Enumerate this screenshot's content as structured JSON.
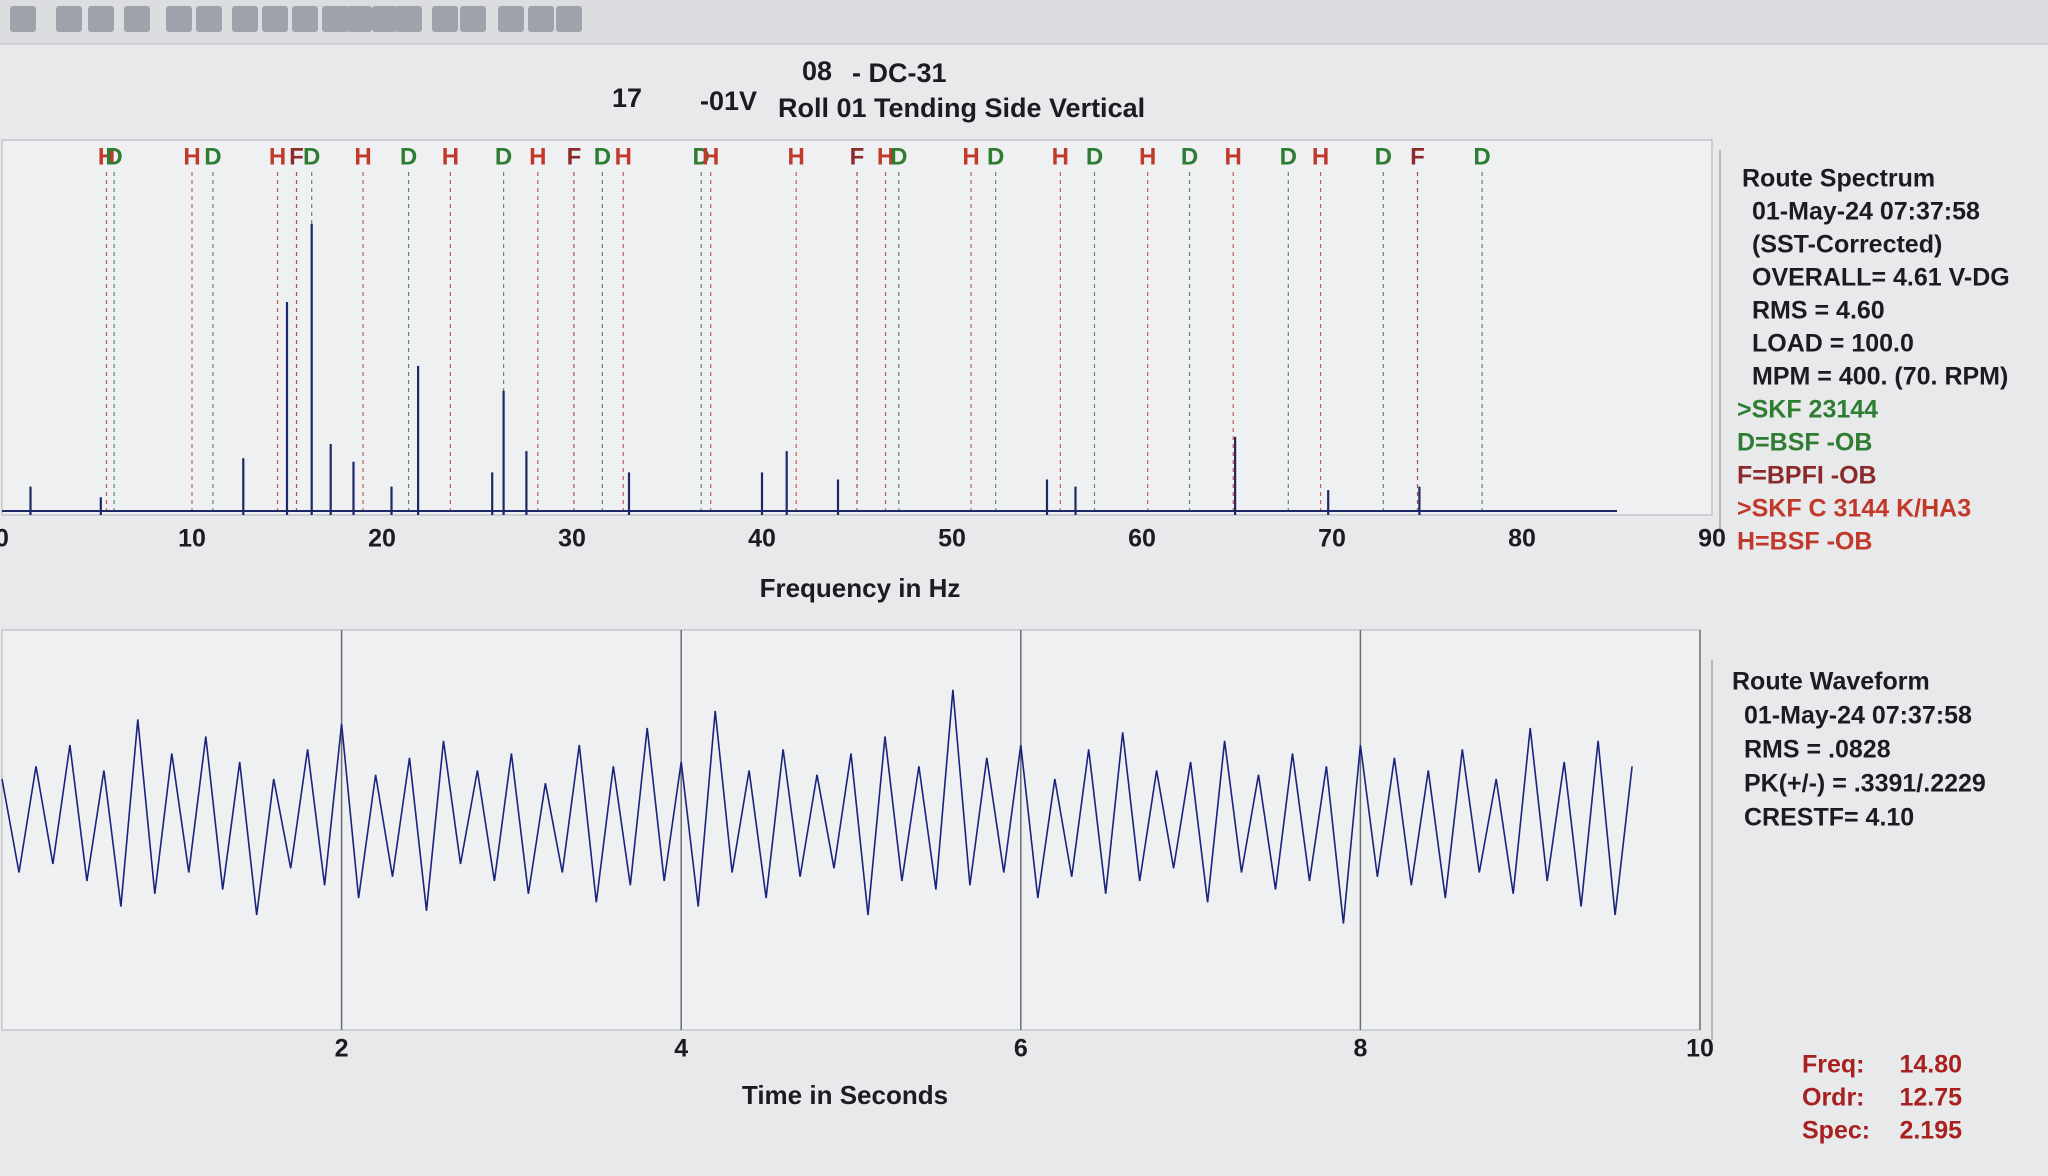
{
  "header": {
    "left_code": "08",
    "right_code": "- DC-31",
    "number": "17",
    "channel": "-01V",
    "point": "Roll 01 Tending Side Vertical"
  },
  "chart_data": [
    {
      "type": "bar",
      "xlabel": "Frequency in Hz",
      "xlim": [
        0,
        90
      ],
      "xticks": [
        0,
        10,
        20,
        30,
        40,
        50,
        60,
        70,
        80,
        90
      ],
      "ylim": [
        0,
        1
      ],
      "color": "#1c2766",
      "x": [
        1.5,
        5.2,
        12.7,
        15.0,
        16.3,
        17.3,
        18.5,
        20.5,
        21.9,
        25.8,
        26.4,
        27.6,
        33.0,
        40.0,
        41.3,
        44.0,
        55.0,
        56.5,
        64.9,
        69.8,
        74.6
      ],
      "values": [
        0.08,
        0.05,
        0.16,
        0.6,
        0.82,
        0.2,
        0.15,
        0.08,
        0.42,
        0.12,
        0.35,
        0.18,
        0.12,
        0.12,
        0.18,
        0.1,
        0.1,
        0.08,
        0.22,
        0.07,
        0.08
      ],
      "marker_colors": {
        "H": "#c0392b",
        "D": "#2e7d32",
        "F": "#8b2a2a"
      },
      "markers": [
        {
          "label": "H",
          "x": 5.5
        },
        {
          "label": "D",
          "x": 5.9
        },
        {
          "label": "H",
          "x": 10.0
        },
        {
          "label": "D",
          "x": 11.1
        },
        {
          "label": "H",
          "x": 14.5
        },
        {
          "label": "F",
          "x": 15.5
        },
        {
          "label": "D",
          "x": 16.3
        },
        {
          "label": "H",
          "x": 19.0
        },
        {
          "label": "D",
          "x": 21.4
        },
        {
          "label": "H",
          "x": 23.6
        },
        {
          "label": "D",
          "x": 26.4
        },
        {
          "label": "H",
          "x": 28.2
        },
        {
          "label": "F",
          "x": 30.1
        },
        {
          "label": "D",
          "x": 31.6
        },
        {
          "label": "H",
          "x": 32.7
        },
        {
          "label": "D",
          "x": 36.8
        },
        {
          "label": "H",
          "x": 37.3
        },
        {
          "label": "H",
          "x": 41.8
        },
        {
          "label": "F",
          "x": 45.0
        },
        {
          "label": "H",
          "x": 46.5
        },
        {
          "label": "D",
          "x": 47.2
        },
        {
          "label": "H",
          "x": 51.0
        },
        {
          "label": "D",
          "x": 52.3
        },
        {
          "label": "H",
          "x": 55.7
        },
        {
          "label": "D",
          "x": 57.5
        },
        {
          "label": "H",
          "x": 60.3
        },
        {
          "label": "D",
          "x": 62.5
        },
        {
          "label": "H",
          "x": 64.8
        },
        {
          "label": "D",
          "x": 67.7
        },
        {
          "label": "H",
          "x": 69.4
        },
        {
          "label": "D",
          "x": 72.7
        },
        {
          "label": "F",
          "x": 74.5
        },
        {
          "label": "D",
          "x": 77.9
        }
      ]
    },
    {
      "type": "line",
      "xlabel": "Time in Seconds",
      "xlim": [
        0,
        10
      ],
      "xticks": [
        2,
        4,
        6,
        8,
        10
      ],
      "ylim": [
        -0.4,
        0.4
      ],
      "color": "#1a237e",
      "grid": true,
      "x": [
        0,
        0.1,
        0.2,
        0.3,
        0.4,
        0.5,
        0.6,
        0.7,
        0.8,
        0.9,
        1,
        1.1,
        1.2,
        1.3,
        1.4,
        1.5,
        1.6,
        1.7,
        1.8,
        1.9,
        2,
        2.1,
        2.2,
        2.3,
        2.4,
        2.5,
        2.6,
        2.7,
        2.8,
        2.9,
        3,
        3.1,
        3.2,
        3.3,
        3.4,
        3.5,
        3.6,
        3.7,
        3.8,
        3.9,
        4,
        4.1,
        4.2,
        4.3,
        4.4,
        4.5,
        4.6,
        4.7,
        4.8,
        4.9,
        5,
        5.1,
        5.2,
        5.3,
        5.4,
        5.5,
        5.6,
        5.7,
        5.8,
        5.9,
        6,
        6.1,
        6.2,
        6.3,
        6.4,
        6.5,
        6.6,
        6.7,
        6.8,
        6.9,
        7,
        7.1,
        7.2,
        7.3,
        7.4,
        7.5,
        7.6,
        7.7,
        7.8,
        7.9,
        8,
        8.1,
        8.2,
        8.3,
        8.4,
        8.5,
        8.6,
        8.7,
        8.8,
        8.9,
        9,
        9.1,
        9.2,
        9.3,
        9.4,
        9.5,
        9.6
      ],
      "values": [
        0.12,
        -0.1,
        0.15,
        -0.08,
        0.2,
        -0.12,
        0.14,
        -0.18,
        0.26,
        -0.15,
        0.18,
        -0.1,
        0.22,
        -0.14,
        0.16,
        -0.2,
        0.12,
        -0.09,
        0.19,
        -0.13,
        0.25,
        -0.16,
        0.13,
        -0.11,
        0.17,
        -0.19,
        0.21,
        -0.08,
        0.14,
        -0.12,
        0.18,
        -0.15,
        0.11,
        -0.1,
        0.2,
        -0.17,
        0.15,
        -0.13,
        0.24,
        -0.12,
        0.16,
        -0.18,
        0.28,
        -0.1,
        0.14,
        -0.16,
        0.19,
        -0.11,
        0.13,
        -0.09,
        0.18,
        -0.2,
        0.22,
        -0.12,
        0.15,
        -0.14,
        0.33,
        -0.13,
        0.17,
        -0.1,
        0.2,
        -0.16,
        0.12,
        -0.11,
        0.19,
        -0.15,
        0.23,
        -0.12,
        0.14,
        -0.09,
        0.16,
        -0.17,
        0.21,
        -0.1,
        0.13,
        -0.14,
        0.18,
        -0.12,
        0.15,
        -0.22,
        0.2,
        -0.11,
        0.17,
        -0.13,
        0.14,
        -0.16,
        0.19,
        -0.1,
        0.12,
        -0.15,
        0.24,
        -0.12,
        0.16,
        -0.18,
        0.21,
        -0.2,
        0.15
      ]
    }
  ],
  "spectrum_info": [
    "Route Spectrum",
    "01-May-24  07:37:58",
    "(SST-Corrected)",
    "OVERALL= 4.61 V-DG",
    "RMS =  4.60",
    "LOAD = 100.0",
    "MPM = 400. (70. RPM)"
  ],
  "spectrum_legend": [
    {
      "text": ">SKF 23144",
      "color": "#2e7d32"
    },
    {
      "text": "D=BSF  -OB",
      "color": "#2e7d32"
    },
    {
      "text": "F=BPFI -OB",
      "color": "#8b2a2a"
    },
    {
      "text": ">SKF C 3144 K/HA3",
      "color": "#c0392b"
    },
    {
      "text": "H=BSF  -OB",
      "color": "#c0392b"
    }
  ],
  "waveform_info": [
    "Route Waveform",
    "01-May-24  07:37:58",
    "RMS =  .0828",
    "PK(+/-) = .3391/.2229",
    "CRESTF= 4.10"
  ],
  "cursor": [
    {
      "label": "Freq:",
      "value": "14.80"
    },
    {
      "label": "Ordr:",
      "value": "12.75"
    },
    {
      "label": "Spec:",
      "value": "2.195"
    }
  ]
}
